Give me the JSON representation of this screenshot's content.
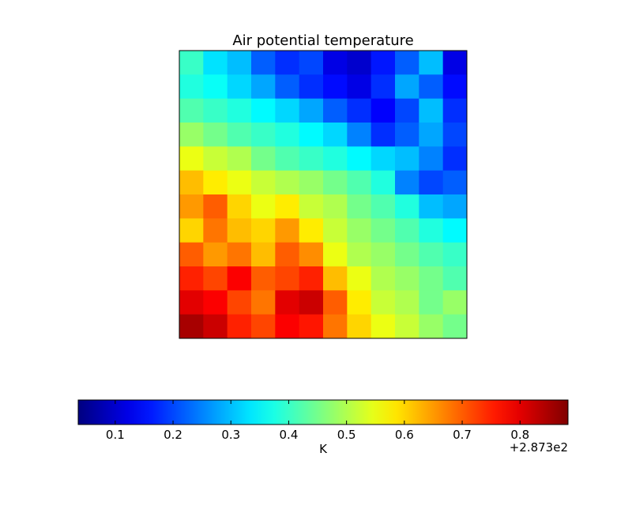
{
  "chart_data": {
    "type": "heatmap",
    "title": "Air potential temperature",
    "colormap": "jet",
    "values": [
      [
        0.4,
        0.33,
        0.3,
        0.22,
        0.18,
        0.2,
        0.12,
        0.1,
        0.16,
        0.22,
        0.3,
        0.12
      ],
      [
        0.38,
        0.36,
        0.32,
        0.28,
        0.22,
        0.18,
        0.15,
        0.12,
        0.18,
        0.28,
        0.22,
        0.15
      ],
      [
        0.42,
        0.4,
        0.38,
        0.35,
        0.32,
        0.28,
        0.22,
        0.18,
        0.14,
        0.2,
        0.3,
        0.18
      ],
      [
        0.48,
        0.45,
        0.42,
        0.4,
        0.38,
        0.35,
        0.32,
        0.25,
        0.18,
        0.22,
        0.28,
        0.2
      ],
      [
        0.55,
        0.52,
        0.5,
        0.45,
        0.42,
        0.4,
        0.38,
        0.35,
        0.32,
        0.3,
        0.25,
        0.18
      ],
      [
        0.62,
        0.58,
        0.55,
        0.52,
        0.5,
        0.48,
        0.45,
        0.42,
        0.38,
        0.25,
        0.2,
        0.22
      ],
      [
        0.65,
        0.7,
        0.6,
        0.55,
        0.58,
        0.52,
        0.5,
        0.45,
        0.42,
        0.38,
        0.3,
        0.28
      ],
      [
        0.6,
        0.68,
        0.62,
        0.6,
        0.65,
        0.58,
        0.52,
        0.48,
        0.45,
        0.42,
        0.38,
        0.35
      ],
      [
        0.7,
        0.65,
        0.68,
        0.62,
        0.7,
        0.66,
        0.55,
        0.5,
        0.48,
        0.45,
        0.42,
        0.4
      ],
      [
        0.75,
        0.72,
        0.78,
        0.7,
        0.72,
        0.75,
        0.62,
        0.55,
        0.5,
        0.48,
        0.45,
        0.42
      ],
      [
        0.8,
        0.78,
        0.72,
        0.68,
        0.8,
        0.82,
        0.7,
        0.58,
        0.52,
        0.5,
        0.45,
        0.48
      ],
      [
        0.85,
        0.82,
        0.75,
        0.72,
        0.78,
        0.76,
        0.68,
        0.6,
        0.55,
        0.52,
        0.48,
        0.45
      ]
    ],
    "colorbar": {
      "label": "K",
      "offset_label": "+2.873e2",
      "lim": [
        0.036,
        0.883
      ],
      "ticks": [
        0.1,
        0.2,
        0.3,
        0.4,
        0.5,
        0.6,
        0.7,
        0.8
      ]
    }
  }
}
